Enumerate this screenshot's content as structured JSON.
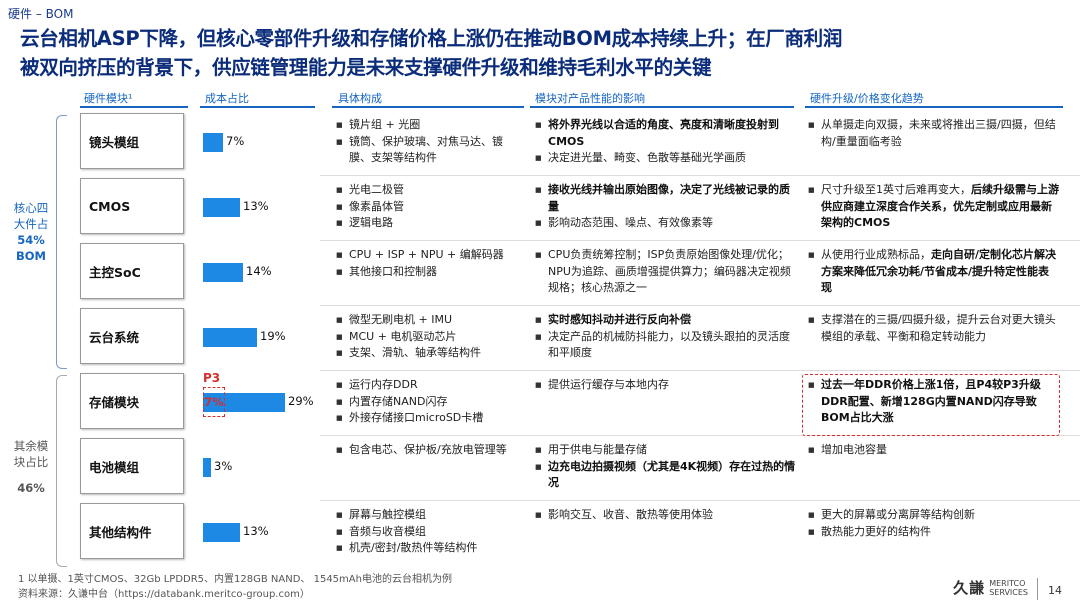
{
  "section_tag": "硬件 – BOM",
  "title_line1": "云台相机ASP下降，但核心零部件升级和存储价格上涨仍在推动BOM成本持续上升；在厂商利润",
  "title_line2": "被双向挤压的背景下，供应链管理能力是未来支撑硬件升级和维持毛利水平的关键",
  "columns": {
    "module": "硬件模块¹",
    "cost": "成本占比",
    "composition": "具体构成",
    "impact": "模块对产品性能的影响",
    "trend": "硬件升级/价格变化趋势"
  },
  "groups": {
    "core_label": "核心四大件占",
    "core_pct": "54%",
    "core_unit": "BOM",
    "other_label": "其余模块占比",
    "other_pct": "46%"
  },
  "rows": [
    {
      "module": "镜头模组",
      "cost_pct": 7,
      "cost_label": "7%",
      "composition": [
        "镜片组 + 光圈",
        "镜筒、保护玻璃、对焦马达、镀膜、支架等结构件"
      ],
      "impact": [
        {
          "bold": "将外界光线以合适的角度、亮度和清晰度投射到CMOS",
          "rest": ""
        },
        {
          "bold": "",
          "rest": "决定进光量、畸变、色散等基础光学画质"
        }
      ],
      "trend": [
        {
          "pre": "从单摄走向双摄，未来或将推出三摄/四摄，但结构/重量面临考验",
          "bold": "",
          "post": ""
        }
      ]
    },
    {
      "module": "CMOS",
      "cost_pct": 13,
      "cost_label": "13%",
      "composition": [
        "光电二极管",
        "像素晶体管",
        "逻辑电路"
      ],
      "impact": [
        {
          "bold": "接收光线并输出原始图像，决定了光线被记录的质量",
          "rest": ""
        },
        {
          "bold": "",
          "rest": "影响动态范围、噪点、有效像素等"
        }
      ],
      "trend": [
        {
          "pre": "尺寸升级至1英寸后难再变大，",
          "bold": "后续升级需与上游供应商建立深度合作关系，优先定制或应用最新架构的CMOS",
          "post": ""
        }
      ]
    },
    {
      "module": "主控SoC",
      "cost_pct": 14,
      "cost_label": "14%",
      "composition": [
        "CPU + ISP + NPU + 编解码器",
        "其他接口和控制器"
      ],
      "impact": [
        {
          "bold": "",
          "rest": "CPU负责统筹控制；ISP负责原始图像处理/优化；NPU为追踪、画质增强提供算力；编码器决定视频规格；核心热源之一"
        }
      ],
      "trend": [
        {
          "pre": "从使用行业成熟标品，",
          "bold": "走向自研/定制化芯片解决方案来降低冗余功耗/节省成本/提升特定性能表现",
          "post": ""
        }
      ]
    },
    {
      "module": "云台系统",
      "cost_pct": 19,
      "cost_label": "19%",
      "composition": [
        "微型无刷电机 + IMU",
        "MCU + 电机驱动芯片",
        "支架、滑轨、轴承等结构件"
      ],
      "impact": [
        {
          "bold": "实时感知抖动并进行反向补偿",
          "rest": ""
        },
        {
          "bold": "",
          "rest": "决定产品的机械防抖能力，以及镜头跟拍的灵活度和平顺度"
        }
      ],
      "trend": [
        {
          "pre": "支撑潜在的三摄/四摄升级，提升云台对更大镜头模组的承载、平衡和稳定转动能力",
          "bold": "",
          "post": ""
        }
      ]
    },
    {
      "module": "存储模块",
      "cost_pct": 29,
      "cost_label": "29%",
      "p3_tag": "P3",
      "p3_pct": 7,
      "p3_label": "7%",
      "composition": [
        "运行内存DDR",
        "内置存储NAND闪存",
        "外接存储接口microSD卡槽"
      ],
      "impact": [
        {
          "bold": "",
          "rest": "提供运行缓存与本地内存"
        }
      ],
      "trend": [
        {
          "pre": "",
          "bold": "过去一年DDR价格上涨1倍，且P4较P3升级DDR配置、新增128G内置NAND闪存导致BOM占比大涨",
          "post": ""
        }
      ]
    },
    {
      "module": "电池模组",
      "cost_pct": 3,
      "cost_label": "3%",
      "composition": [
        "包含电芯、保护板/充放电管理等"
      ],
      "impact": [
        {
          "bold": "",
          "rest": "用于供电与能量存储"
        },
        {
          "bold": "边充电边拍摄视频（尤其是4K视频）存在过热的情况",
          "rest": ""
        }
      ],
      "trend": [
        {
          "pre": "增加电池容量",
          "bold": "",
          "post": ""
        }
      ]
    },
    {
      "module": "其他结构件",
      "cost_pct": 13,
      "cost_label": "13%",
      "composition": [
        "屏幕与触控模组",
        "音频与收音模组",
        "机壳/密封/散热件等结构件"
      ],
      "impact": [
        {
          "bold": "",
          "rest": "影响交互、收音、散热等使用体验"
        }
      ],
      "trend": [
        {
          "pre": "更大的屏幕或分离屏等结构创新",
          "bold": "",
          "post": ""
        },
        {
          "pre": "散热能力更好的结构件",
          "bold": "",
          "post": ""
        }
      ]
    }
  ],
  "footnote1": "1   以单摄、1英寸CMOS、32Gb LPDDR5、内置128GB NAND、 1545mAh电池的云台相机为例",
  "footnote2": "资料来源：久谦中台（https://databank.meritco-group.com）",
  "logo_zh": "久謙",
  "logo_en1": "MERITCO",
  "logo_en2": "SERVICES",
  "page_number": "14",
  "colors": {
    "accent": "#1565c0",
    "bar": "#1e88e5",
    "highlight": "#d32f2f",
    "title": "#0b2c7a"
  }
}
